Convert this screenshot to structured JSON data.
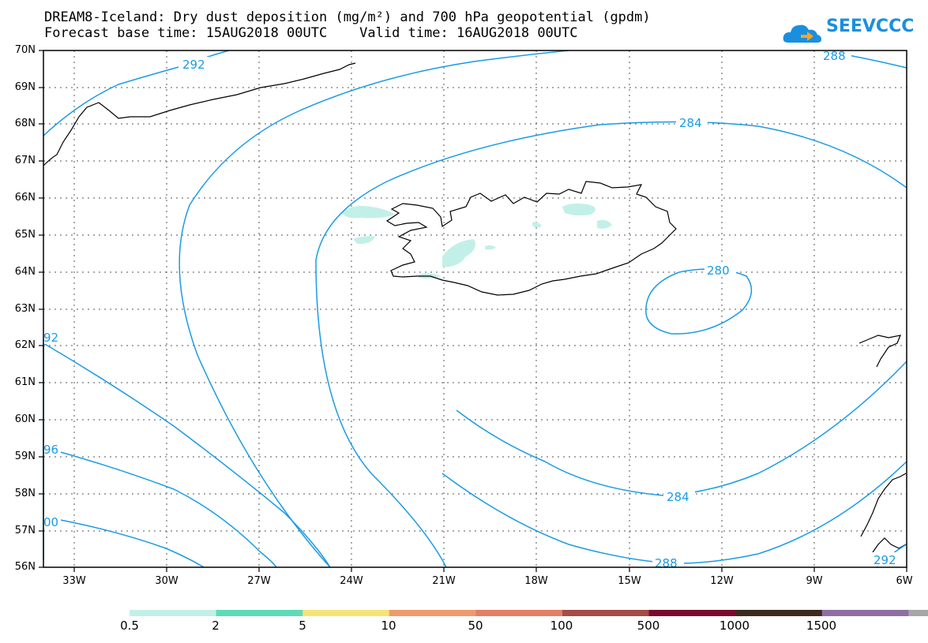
{
  "title_line1": "DREAM8-Iceland: Dry dust deposition (mg/m²) and 700 hPa geopotential (gpdm)",
  "title_line2": "Forecast base time: 15AUG2018 00UTC    Valid time: 16AUG2018 00UTC",
  "logo": {
    "text": "SEEVCCC",
    "icon": "cloud-icon",
    "color": "#1a8fe0"
  },
  "lat_labels": [
    "70N",
    "69N",
    "68N",
    "67N",
    "66N",
    "65N",
    "64N",
    "63N",
    "62N",
    "61N",
    "60N",
    "59N",
    "58N",
    "57N",
    "56N"
  ],
  "lon_labels": [
    "33W",
    "30W",
    "27W",
    "24W",
    "21W",
    "18W",
    "15W",
    "12W",
    "9W",
    "6W"
  ],
  "contour_labels": {
    "c292_top": "292",
    "c288_top": "288",
    "c284_top": "284",
    "c280": "280",
    "c284_bottom": "284",
    "c288_bottom": "288",
    "c292_left": "92",
    "c296_left": "96",
    "c300_left": "00",
    "c292_bottom": "292"
  },
  "contour_color": "#1a9be6",
  "colorbar": {
    "colors": [
      "#c2f0e8",
      "#5edbb6",
      "#f7e477",
      "#ee9a6e",
      "#e37f66",
      "#a44c48",
      "#7a0b2c",
      "#3c2a1d",
      "#8f6fa3",
      "#a7a7a7"
    ],
    "labels": [
      "0.5",
      "2",
      "5",
      "10",
      "50",
      "100",
      "500",
      "1000",
      "1500"
    ]
  }
}
